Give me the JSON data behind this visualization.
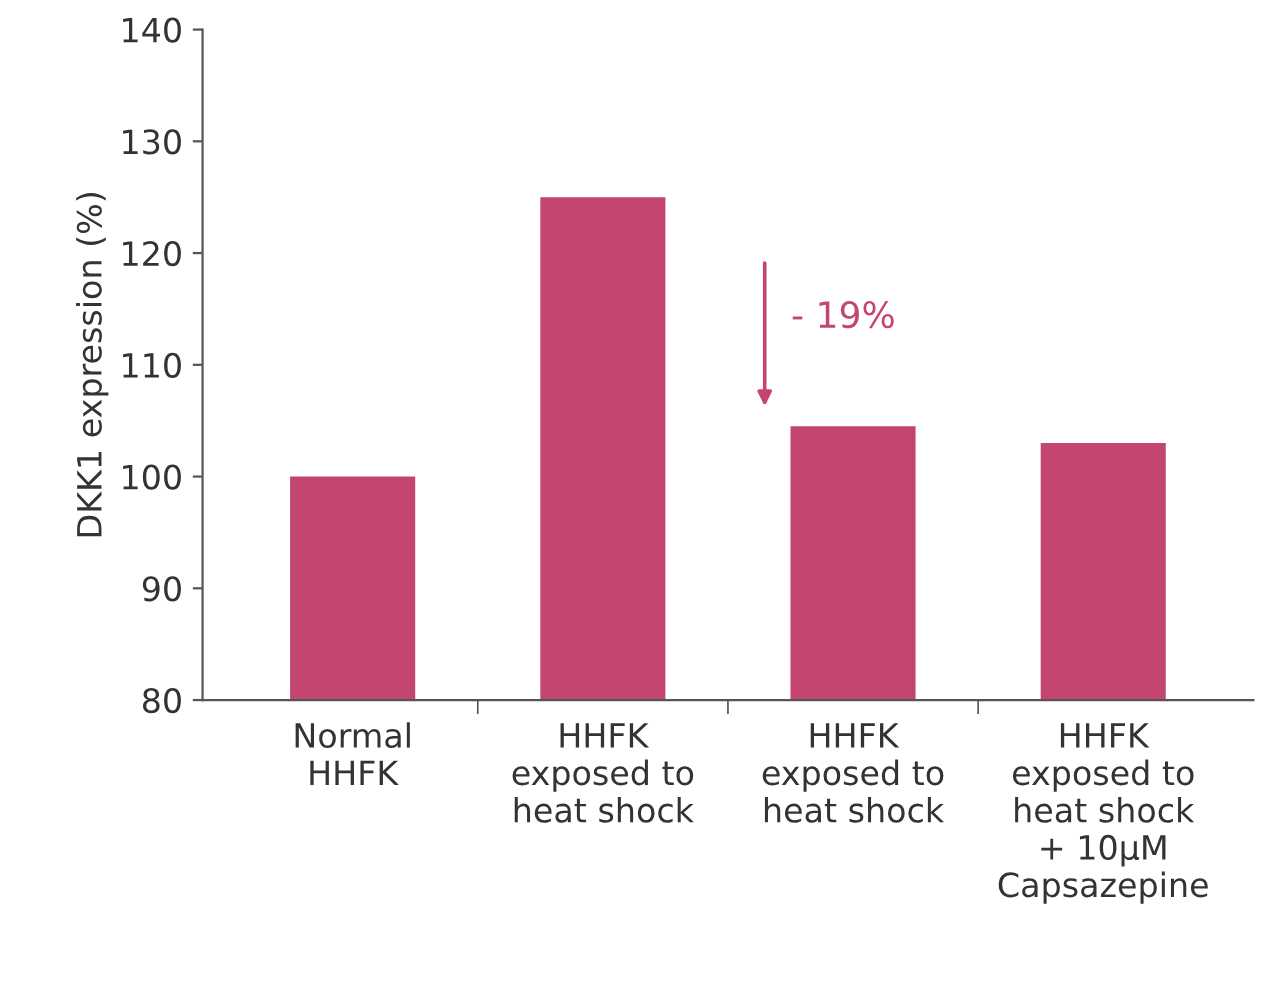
{
  "chart_data": {
    "type": "bar",
    "ylabel": "DKK1 expression (%)",
    "categories": [
      "Normal\nHHFK",
      "HHFK\nexposed to\nheat shock",
      "HHFK\nexposed to\nheat shock",
      "HHFK\nexposed to\nheat shock\n+ 10µM\nCapsazepine"
    ],
    "values": [
      100,
      125,
      104.5,
      103
    ],
    "color": "#c4456f",
    "ylim": [
      80,
      140
    ],
    "yticks": [
      80,
      90,
      100,
      110,
      120,
      130,
      140
    ],
    "grid": false,
    "annotations": [
      "- 19%"
    ]
  }
}
